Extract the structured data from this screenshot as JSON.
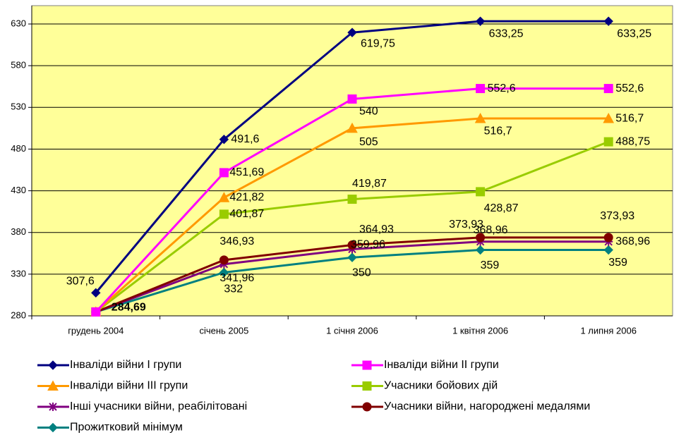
{
  "chart_data": {
    "type": "line",
    "categories": [
      "грудень 2004",
      "січень 2005",
      "1 січня 2006",
      "1 квітня 2006",
      "1 липня 2006"
    ],
    "ylim": [
      280,
      652
    ],
    "yticks": [
      280,
      330,
      380,
      430,
      480,
      530,
      580,
      630
    ],
    "grid": true,
    "background": "#ffff99",
    "series": [
      {
        "name": "Інваліди війни І групи",
        "color": "#000080",
        "marker": "diamond",
        "values": [
          307.6,
          491.6,
          619.75,
          633.25,
          633.25
        ],
        "value_labels": [
          "307,6",
          "491,6",
          "619,75",
          "633,25",
          "633,25"
        ]
      },
      {
        "name": "Інваліди війни ІІ групи",
        "color": "#ff00ff",
        "marker": "square",
        "values": [
          284.69,
          451.69,
          540,
          552.6,
          552.6
        ],
        "value_labels": [
          null,
          "451,69",
          "540",
          "552,6",
          "552,6"
        ]
      },
      {
        "name": "Інваліди війни ІІІ групи",
        "color": "#ff9900",
        "marker": "triangle",
        "values": [
          284.69,
          421.82,
          505,
          516.7,
          516.7
        ],
        "value_labels": [
          null,
          "421,82",
          "505",
          "516,7",
          "516,7"
        ]
      },
      {
        "name": "Учасники бойових дій",
        "color": "#99cc00",
        "marker": "square",
        "values": [
          284.69,
          401.87,
          419.87,
          428.87,
          488.75
        ],
        "value_labels": [
          null,
          "401,87",
          "419,87",
          "428,87",
          "488,75"
        ]
      },
      {
        "name": "Інші учасники війни, реабілітовані",
        "color": "#800080",
        "marker": "asterisk",
        "values": [
          284.69,
          341.96,
          359.96,
          368.96,
          368.96
        ],
        "value_labels": [
          null,
          "341,96",
          "359,96",
          "368,96",
          "368,96"
        ]
      },
      {
        "name": "Учасники війни, нагороджені медалями",
        "color": "#800000",
        "marker": "circle",
        "values": [
          284.69,
          346.93,
          364.93,
          373.93,
          373.93
        ],
        "value_labels": [
          null,
          "346,93",
          "364,93",
          "373,93",
          "373,93"
        ]
      },
      {
        "name": "Прожитковий мінімум",
        "color": "#008080",
        "marker": "diamond",
        "values": [
          284.69,
          332,
          350,
          359,
          359
        ],
        "value_labels": [
          "284,69",
          "332",
          "350",
          "359",
          "359"
        ]
      }
    ]
  }
}
